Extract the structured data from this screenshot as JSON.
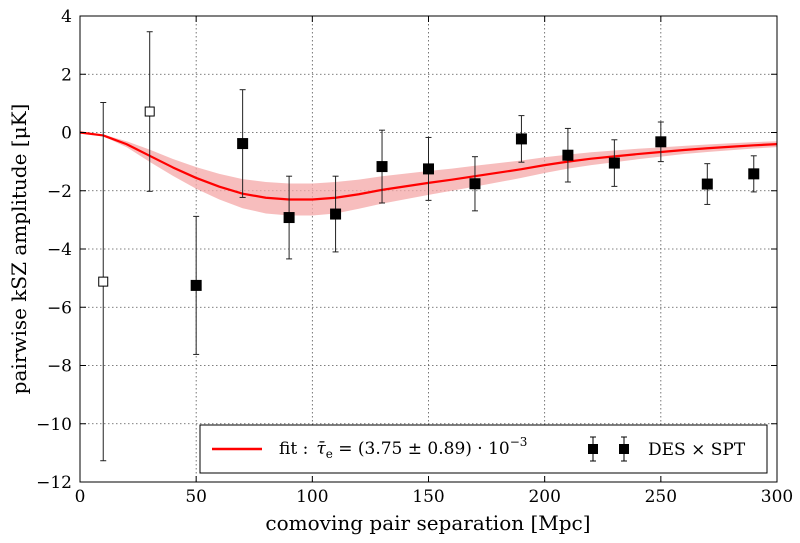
{
  "chart_data": {
    "type": "scatter",
    "xlabel": "comoving pair separation [Mpc]",
    "ylabel": "pairwise kSZ amplitude [μK]",
    "xlim": [
      0,
      300
    ],
    "ylim": [
      -12,
      4
    ],
    "x_ticks": [
      0,
      50,
      100,
      150,
      200,
      250,
      300
    ],
    "y_ticks": [
      -12,
      -10,
      -8,
      -6,
      -4,
      -2,
      0,
      2,
      4
    ],
    "grid": true,
    "legend_position": "bottom-right",
    "colors": {
      "fit": "#ff0000",
      "band": "#f4a7a7",
      "points": "#000000",
      "errorbars": "#222222"
    },
    "series": [
      {
        "name": "DES × SPT",
        "marker": "filled-square",
        "x": [
          50,
          70,
          90,
          110,
          130,
          150,
          170,
          190,
          210,
          230,
          250,
          270,
          290
        ],
        "y": [
          -5.25,
          -0.38,
          -2.92,
          -2.8,
          -1.17,
          -1.25,
          -1.76,
          -0.22,
          -0.78,
          -1.05,
          -0.32,
          -1.77,
          -1.42
        ],
        "yerr": [
          2.37,
          1.85,
          1.42,
          1.3,
          1.25,
          1.08,
          0.93,
          0.8,
          0.92,
          0.8,
          0.68,
          0.7,
          0.62
        ]
      },
      {
        "name": "",
        "marker": "open-square",
        "x": [
          10,
          30
        ],
        "y": [
          -5.12,
          0.72
        ],
        "yerr": [
          6.15,
          2.74
        ]
      },
      {
        "name": "fit : τ̄ₑ = (3.75 ± 0.89) · 10⁻³",
        "type": "line",
        "x": [
          0,
          10,
          20,
          30,
          40,
          50,
          60,
          70,
          80,
          90,
          100,
          110,
          120,
          130,
          140,
          150,
          160,
          170,
          180,
          190,
          200,
          210,
          220,
          230,
          240,
          250,
          260,
          270,
          280,
          290,
          300
        ],
        "y": [
          0,
          -0.1,
          -0.4,
          -0.8,
          -1.2,
          -1.56,
          -1.86,
          -2.1,
          -2.24,
          -2.3,
          -2.3,
          -2.24,
          -2.12,
          -1.97,
          -1.85,
          -1.73,
          -1.62,
          -1.5,
          -1.38,
          -1.26,
          -1.12,
          -1.0,
          -0.9,
          -0.82,
          -0.74,
          -0.67,
          -0.6,
          -0.54,
          -0.49,
          -0.44,
          -0.4
        ],
        "band_halfwidth": [
          0,
          0.03,
          0.1,
          0.21,
          0.29,
          0.37,
          0.44,
          0.5,
          0.54,
          0.55,
          0.55,
          0.54,
          0.5,
          0.47,
          0.44,
          0.41,
          0.38,
          0.36,
          0.33,
          0.3,
          0.27,
          0.24,
          0.22,
          0.2,
          0.18,
          0.16,
          0.14,
          0.13,
          0.12,
          0.11,
          0.1
        ]
      }
    ],
    "legend": {
      "fit_label": "fit :",
      "fit_symbol": "τ̄",
      "fit_subscript": "e",
      "fit_value": " = (3.75 ± 0.89) · 10",
      "fit_exponent": "−3",
      "data_label": "DES × SPT"
    }
  }
}
